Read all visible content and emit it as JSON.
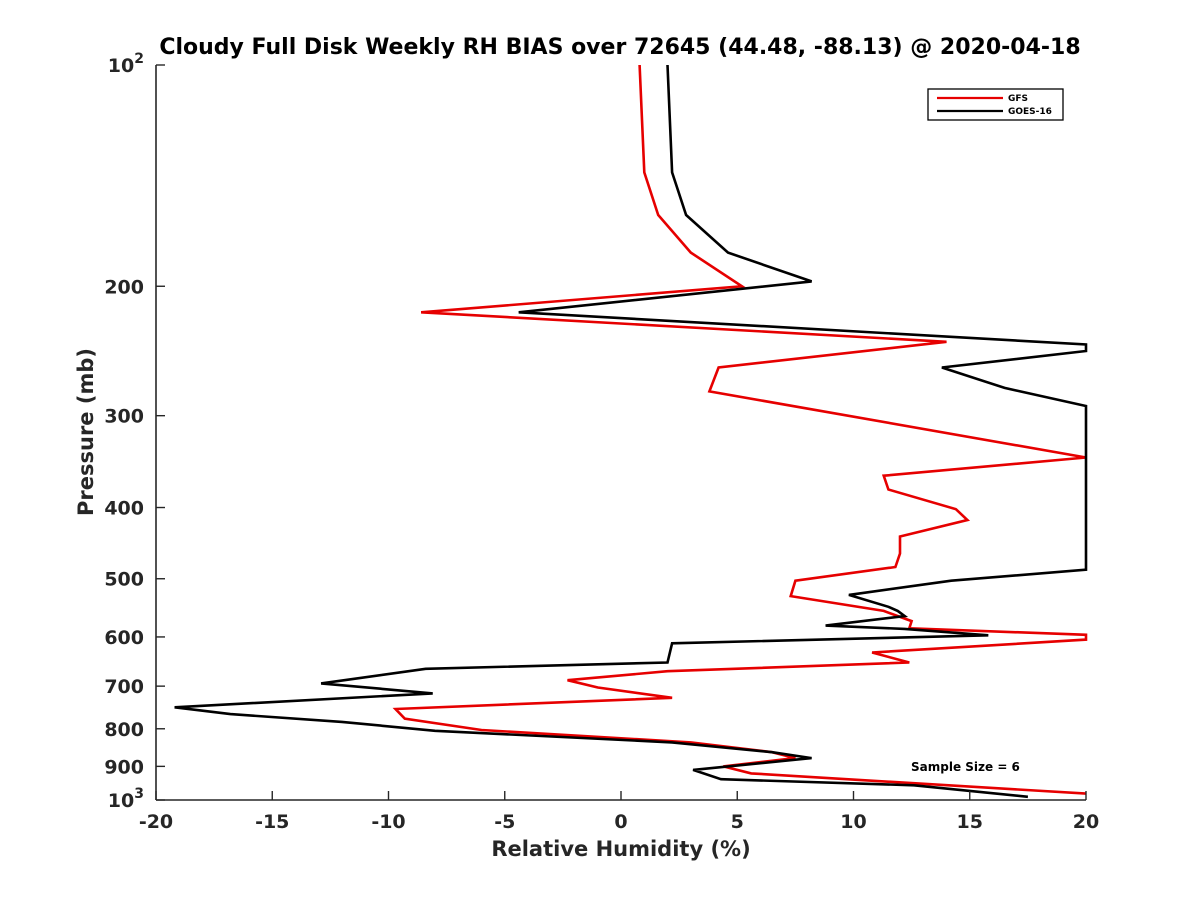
{
  "chart_data": {
    "type": "line",
    "title": "Cloudy Full Disk Weekly RH BIAS over 72645 (44.48, -88.13) @ 2020-04-18",
    "xlabel": "Relative Humidity (%)",
    "ylabel": "Pressure (mb)",
    "xlim": [
      -20,
      20
    ],
    "ylim": [
      100,
      1000
    ],
    "y_scale": "log",
    "y_direction": "reversed",
    "xticks": [
      "-20",
      "-15",
      "-10",
      "-5",
      "0",
      "5",
      "10",
      "15",
      "20"
    ],
    "yticks": [
      {
        "value": 100,
        "base": "10",
        "exp": "2"
      },
      {
        "value": 200,
        "label": "200"
      },
      {
        "value": 300,
        "label": "300"
      },
      {
        "value": 400,
        "label": "400"
      },
      {
        "value": 500,
        "label": "500"
      },
      {
        "value": 600,
        "label": "600"
      },
      {
        "value": 700,
        "label": "700"
      },
      {
        "value": 800,
        "label": "800"
      },
      {
        "value": 900,
        "label": "900"
      },
      {
        "value": 1000,
        "base": "10",
        "exp": "3"
      }
    ],
    "grid": false,
    "legend_position": "top-right",
    "annotation": "Sample Size = 6",
    "series": [
      {
        "name": "GFS",
        "color": "#e60000",
        "points": [
          [
            0.8,
            100
          ],
          [
            1.0,
            140
          ],
          [
            1.6,
            160
          ],
          [
            3.0,
            180
          ],
          [
            5.2,
            200
          ],
          [
            -8.6,
            217
          ],
          [
            14.0,
            238
          ],
          [
            4.2,
            258
          ],
          [
            3.8,
            278
          ],
          [
            20.0,
            342
          ],
          [
            11.3,
            362
          ],
          [
            11.5,
            378
          ],
          [
            14.4,
            402
          ],
          [
            14.9,
            416
          ],
          [
            12.0,
            438
          ],
          [
            12.0,
            462
          ],
          [
            11.8,
            482
          ],
          [
            7.5,
            503
          ],
          [
            7.3,
            528
          ],
          [
            11.3,
            553
          ],
          [
            12.5,
            571
          ],
          [
            12.4,
            584
          ],
          [
            20.0,
            596
          ],
          [
            20.0,
            605
          ],
          [
            10.8,
            630
          ],
          [
            12.4,
            650
          ],
          [
            2.0,
            668
          ],
          [
            -2.3,
            687
          ],
          [
            -1.0,
            703
          ],
          [
            2.2,
            726
          ],
          [
            -9.7,
            752
          ],
          [
            -9.3,
            775
          ],
          [
            -6.0,
            803
          ],
          [
            3.0,
            835
          ],
          [
            6.5,
            861
          ],
          [
            7.5,
            877
          ],
          [
            4.4,
            900
          ],
          [
            5.6,
            920
          ],
          [
            20.0,
            980
          ]
        ]
      },
      {
        "name": "GOES-16",
        "color": "#000000",
        "points": [
          [
            2.0,
            100
          ],
          [
            2.2,
            140
          ],
          [
            2.8,
            160
          ],
          [
            4.6,
            180
          ],
          [
            8.2,
            197
          ],
          [
            -4.4,
            217
          ],
          [
            20.0,
            240
          ],
          [
            20.0,
            245
          ],
          [
            13.8,
            258
          ],
          [
            16.5,
            275
          ],
          [
            20.0,
            291
          ],
          [
            20.0,
            486
          ],
          [
            14.2,
            503
          ],
          [
            9.8,
            526
          ],
          [
            11.5,
            546
          ],
          [
            11.9,
            553
          ],
          [
            12.2,
            562
          ],
          [
            8.8,
            579
          ],
          [
            12.2,
            585
          ],
          [
            15.8,
            597
          ],
          [
            2.2,
            612
          ],
          [
            2.0,
            650
          ],
          [
            -8.4,
            663
          ],
          [
            -12.9,
            694
          ],
          [
            -8.1,
            716
          ],
          [
            -19.2,
            748
          ],
          [
            -16.8,
            764
          ],
          [
            -12.0,
            783
          ],
          [
            -8.0,
            805
          ],
          [
            2.2,
            835
          ],
          [
            6.5,
            861
          ],
          [
            8.2,
            877
          ],
          [
            3.1,
            910
          ],
          [
            4.3,
            937
          ],
          [
            12.6,
            955
          ],
          [
            17.5,
            990
          ]
        ]
      }
    ]
  }
}
